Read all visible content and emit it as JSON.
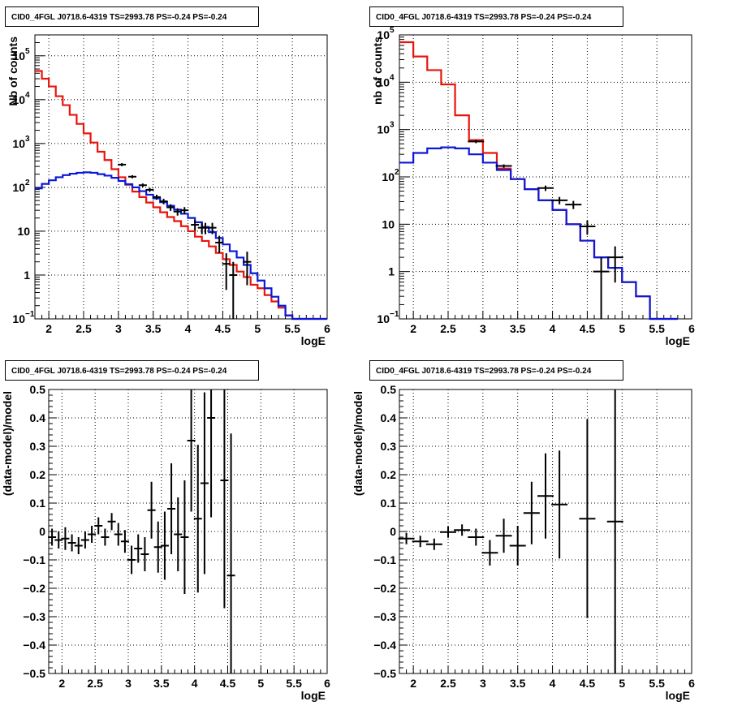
{
  "colors": {
    "data": "#000000",
    "total_model": "#e8140c",
    "component_model": "#0a18d8",
    "grid": "#000000"
  },
  "chart_data": [
    {
      "type": "line",
      "title": "CID0_4FGL J0718.6-4319 TS=2993.78 PS=-0.24 PS=-0.24",
      "xlabel": "logE",
      "ylabel": "Nb of counts",
      "log_y": true,
      "grid": true,
      "xlim": [
        1.8,
        6.0
      ],
      "ylim": [
        0.1,
        300000
      ],
      "x_ticks": [
        "2",
        "2.5",
        "3",
        "3.5",
        "4",
        "4.5",
        "5",
        "5.5",
        "6"
      ],
      "bin_edges": [
        1.8,
        1.9,
        2.0,
        2.1,
        2.2,
        2.3,
        2.4,
        2.5,
        2.6,
        2.7,
        2.8,
        2.9,
        3.0,
        3.1,
        3.2,
        3.3,
        3.4,
        3.5,
        3.6,
        3.7,
        3.8,
        3.9,
        4.0,
        4.1,
        4.2,
        4.3,
        4.4,
        4.5,
        4.6,
        4.7,
        4.8,
        4.9,
        5.0,
        5.1,
        5.2,
        5.3,
        5.4,
        5.5,
        5.6,
        5.7,
        5.8,
        5.9,
        6.0
      ],
      "series": [
        {
          "values": [
            45000,
            30000,
            20000,
            12000,
            7500,
            4500,
            2800,
            1700,
            1050,
            650,
            420,
            260,
            170,
            115,
            80,
            60,
            45,
            35,
            27,
            21,
            17,
            13,
            10,
            7.5,
            6,
            4.5,
            3.2,
            2.3,
            1.7,
            1.2,
            0.9,
            0.6,
            0.5,
            0.35,
            0.25,
            0.18,
            0.12,
            0.1,
            0.1,
            0.1,
            0.1,
            0.1
          ]
        },
        {
          "values": [
            95,
            120,
            145,
            170,
            190,
            205,
            215,
            220,
            215,
            200,
            185,
            165,
            140,
            118,
            100,
            82,
            68,
            56,
            46,
            38,
            31,
            25,
            20,
            16,
            12.5,
            9.5,
            7,
            5,
            3.5,
            2.5,
            1.7,
            1.1,
            0.75,
            0.5,
            0.32,
            0.2,
            0.12,
            0.1,
            0.1,
            0.1,
            0.1,
            0.1
          ]
        }
      ],
      "points": [
        {
          "x": 3.05,
          "y": 330
        },
        {
          "x": 3.2,
          "y": 175
        },
        {
          "x": 3.35,
          "y": 112
        },
        {
          "x": 3.45,
          "y": 88
        },
        {
          "x": 3.55,
          "y": 60
        },
        {
          "x": 3.65,
          "y": 48
        },
        {
          "x": 3.75,
          "y": 35
        },
        {
          "x": 3.85,
          "y": 28
        },
        {
          "x": 3.95,
          "y": 30
        },
        {
          "x": 4.1,
          "y": 14
        },
        {
          "x": 4.2,
          "y": 12
        },
        {
          "x": 4.25,
          "y": 12
        },
        {
          "x": 4.35,
          "y": 12
        },
        {
          "x": 4.45,
          "y": 5.5
        },
        {
          "x": 4.55,
          "y": 1.8
        },
        {
          "x": 4.65,
          "y": 1
        },
        {
          "x": 4.85,
          "y": 2
        }
      ]
    },
    {
      "type": "line",
      "title": "CID0_4FGL J0718.6-4319 TS=2993.78 PS=-0.24 PS=-0.24",
      "xlabel": "logE",
      "ylabel": "nb of counts",
      "log_y": true,
      "grid": true,
      "xlim": [
        1.8,
        6.0
      ],
      "ylim": [
        0.1,
        100000
      ],
      "x_ticks": [
        "2",
        "2.5",
        "3",
        "3.5",
        "4",
        "4.5",
        "5",
        "5.5",
        "6"
      ],
      "bin_edges": [
        1.8,
        2.0,
        2.2,
        2.4,
        2.6,
        2.8,
        3.0,
        3.2,
        3.4,
        3.6,
        3.8,
        4.0,
        4.2,
        4.4,
        4.6,
        4.8,
        5.0,
        5.2,
        5.4,
        5.6,
        5.8,
        6.0
      ],
      "series": [
        {
          "values": [
            70000,
            35000,
            18000,
            9000,
            2000,
            600,
            320,
            150,
            90,
            55,
            32,
            20,
            10,
            4.5,
            2,
            1.2,
            0.6,
            0.3,
            0.1,
            0.1
          ]
        },
        {
          "values": [
            200,
            320,
            400,
            420,
            400,
            300,
            200,
            140,
            90,
            55,
            32,
            20,
            10,
            4.5,
            2,
            1.2,
            0.6,
            0.3,
            0.1,
            0.1
          ]
        }
      ],
      "points": [
        {
          "x": 2.9,
          "y": 560
        },
        {
          "x": 3.3,
          "y": 170
        },
        {
          "x": 3.9,
          "y": 58
        },
        {
          "x": 4.1,
          "y": 32
        },
        {
          "x": 4.3,
          "y": 26
        },
        {
          "x": 4.5,
          "y": 9
        },
        {
          "x": 4.7,
          "y": 1
        },
        {
          "x": 4.9,
          "y": 2
        }
      ]
    },
    {
      "type": "scatter",
      "title": "CID0_4FGL J0718.6-4319 TS=2993.78 PS=-0.24 PS=-0.24",
      "xlabel": "logE",
      "ylabel": "(data-model)/model",
      "grid": true,
      "xlim": [
        1.8,
        6.0
      ],
      "ylim": [
        -0.5,
        0.5
      ],
      "x_ticks": [
        "2",
        "2.5",
        "3",
        "3.5",
        "4",
        "4.5",
        "5",
        "5.5",
        "6"
      ],
      "y_ticks": [
        "−0.5",
        "−0.4",
        "−0.3",
        "−0.2",
        "−0.1",
        "0",
        "0.1",
        "0.2",
        "0.3",
        "0.4",
        "0.5"
      ],
      "points": [
        {
          "x": 1.85,
          "y": -0.02,
          "err": 0.03
        },
        {
          "x": 1.95,
          "y": -0.03,
          "err": 0.03
        },
        {
          "x": 2.05,
          "y": -0.025,
          "err": 0.04
        },
        {
          "x": 2.15,
          "y": -0.04,
          "err": 0.03
        },
        {
          "x": 2.25,
          "y": -0.05,
          "err": 0.03
        },
        {
          "x": 2.35,
          "y": -0.03,
          "err": 0.03
        },
        {
          "x": 2.45,
          "y": -0.01,
          "err": 0.03
        },
        {
          "x": 2.55,
          "y": 0.02,
          "err": 0.03
        },
        {
          "x": 2.65,
          "y": -0.02,
          "err": 0.03
        },
        {
          "x": 2.75,
          "y": 0.035,
          "err": 0.03
        },
        {
          "x": 2.85,
          "y": -0.01,
          "err": 0.04
        },
        {
          "x": 2.95,
          "y": -0.035,
          "err": 0.04
        },
        {
          "x": 3.05,
          "y": -0.1,
          "err": 0.05
        },
        {
          "x": 3.15,
          "y": -0.06,
          "err": 0.05
        },
        {
          "x": 3.25,
          "y": -0.08,
          "err": 0.06
        },
        {
          "x": 3.35,
          "y": 0.075,
          "err": 0.1
        },
        {
          "x": 3.45,
          "y": -0.055,
          "err": 0.09
        },
        {
          "x": 3.55,
          "y": -0.05,
          "err": 0.12
        },
        {
          "x": 3.65,
          "y": 0.08,
          "err": 0.16
        },
        {
          "x": 3.75,
          "y": -0.01,
          "err": 0.13
        },
        {
          "x": 3.85,
          "y": -0.02,
          "err": 0.2
        },
        {
          "x": 3.95,
          "y": 0.32,
          "err": 0.25
        },
        {
          "x": 4.05,
          "y": 0.045,
          "err": 0.26
        },
        {
          "x": 4.15,
          "y": 0.17,
          "err": 0.32
        },
        {
          "x": 4.25,
          "y": 0.4,
          "err": 0.35
        },
        {
          "x": 4.45,
          "y": 0.18,
          "err": 0.45
        },
        {
          "x": 4.55,
          "y": -0.155,
          "err": 0.5
        }
      ]
    },
    {
      "type": "scatter",
      "title": "CID0_4FGL J0718.6-4319 TS=2993.78 PS=-0.24 PS=-0.24",
      "xlabel": "logE",
      "ylabel": "(data-model)/model",
      "grid": true,
      "xlim": [
        1.8,
        6.0
      ],
      "ylim": [
        -0.5,
        0.5
      ],
      "x_ticks": [
        "2",
        "2.5",
        "3",
        "3.5",
        "4",
        "4.5",
        "5",
        "5.5",
        "6"
      ],
      "y_ticks": [
        "−0.5",
        "−0.4",
        "−0.3",
        "−0.2",
        "−0.1",
        "0",
        "0.1",
        "0.2",
        "0.3",
        "0.4",
        "0.5"
      ],
      "points": [
        {
          "x": 1.9,
          "y": -0.025,
          "err": 0.02
        },
        {
          "x": 2.1,
          "y": -0.035,
          "err": 0.02
        },
        {
          "x": 2.3,
          "y": -0.045,
          "err": 0.02
        },
        {
          "x": 2.5,
          "y": -0.002,
          "err": 0.02
        },
        {
          "x": 2.7,
          "y": 0.005,
          "err": 0.02
        },
        {
          "x": 2.9,
          "y": -0.02,
          "err": 0.03
        },
        {
          "x": 3.1,
          "y": -0.075,
          "err": 0.045
        },
        {
          "x": 3.3,
          "y": -0.015,
          "err": 0.06
        },
        {
          "x": 3.5,
          "y": -0.05,
          "err": 0.07
        },
        {
          "x": 3.7,
          "y": 0.065,
          "err": 0.11
        },
        {
          "x": 3.9,
          "y": 0.125,
          "err": 0.15
        },
        {
          "x": 4.1,
          "y": 0.095,
          "err": 0.19
        },
        {
          "x": 4.5,
          "y": 0.045,
          "err": 0.35
        },
        {
          "x": 4.9,
          "y": 0.035,
          "err": 0.55
        }
      ]
    }
  ]
}
